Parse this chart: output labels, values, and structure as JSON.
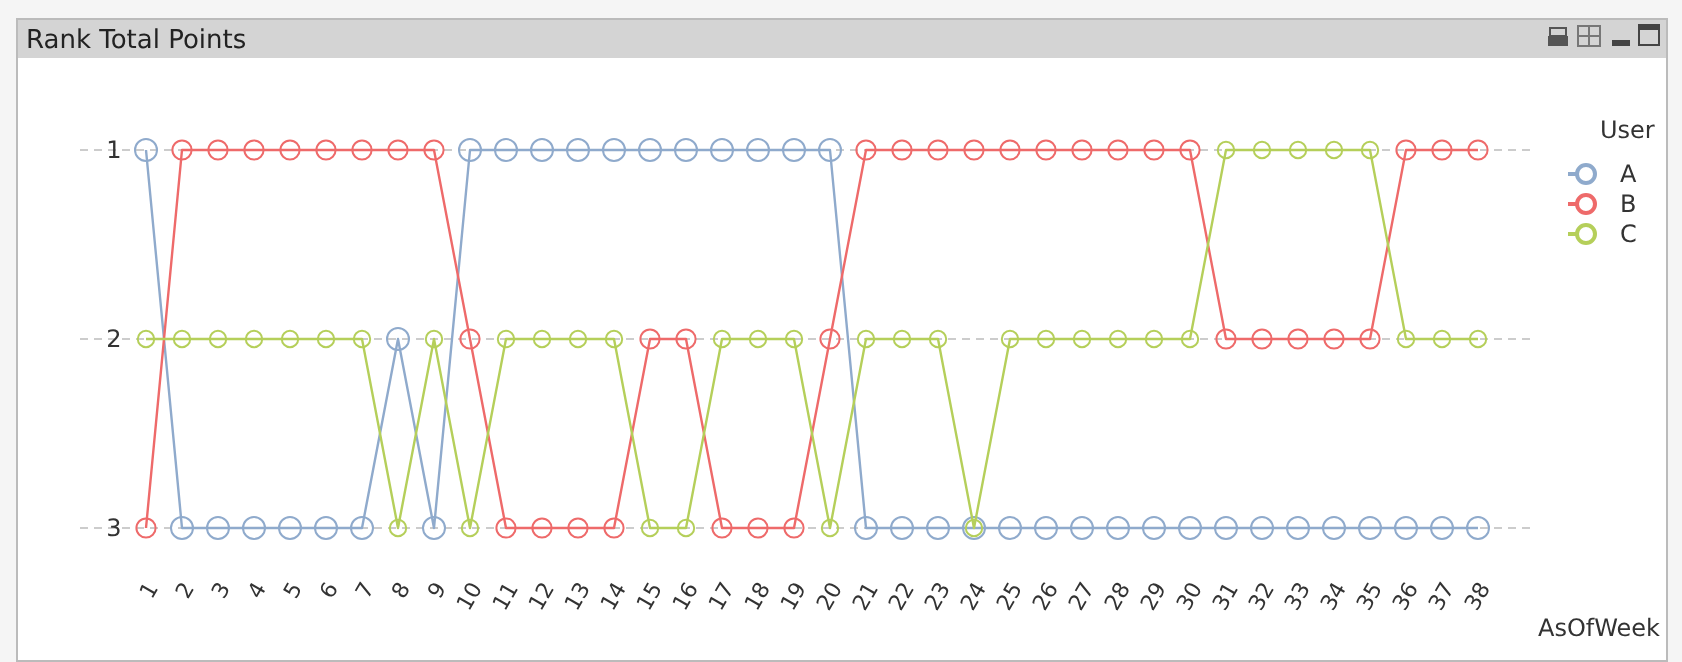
{
  "chart_data": {
    "type": "line",
    "title": "Rank Total Points",
    "xlabel": "AsOfWeek",
    "legend_title": "User",
    "legend": "right",
    "marker": "circle",
    "line_style": "solid",
    "grid": "y",
    "categories": [
      "1",
      "2",
      "3",
      "4",
      "5",
      "6",
      "7",
      "8",
      "9",
      "10",
      "11",
      "12",
      "13",
      "14",
      "15",
      "16",
      "17",
      "18",
      "19",
      "20",
      "21",
      "22",
      "23",
      "24",
      "25",
      "26",
      "27",
      "28",
      "29",
      "30",
      "31",
      "32",
      "33",
      "34",
      "35",
      "36",
      "37",
      "38"
    ],
    "ylim": [
      3,
      1
    ],
    "yticks": [
      1,
      2,
      3
    ],
    "series": [
      {
        "name": "A",
        "color": "#8faacc",
        "values": [
          1,
          3,
          3,
          3,
          3,
          3,
          3,
          2,
          3,
          1,
          1,
          1,
          1,
          1,
          1,
          1,
          1,
          1,
          1,
          1,
          3,
          3,
          3,
          3,
          3,
          3,
          3,
          3,
          3,
          3,
          3,
          3,
          3,
          3,
          3,
          3,
          3,
          3
        ]
      },
      {
        "name": "B",
        "color": "#ee6a6a",
        "values": [
          3,
          1,
          1,
          1,
          1,
          1,
          1,
          1,
          1,
          2,
          3,
          3,
          3,
          3,
          2,
          2,
          3,
          3,
          3,
          2,
          1,
          1,
          1,
          1,
          1,
          1,
          1,
          1,
          1,
          1,
          2,
          2,
          2,
          2,
          2,
          1,
          1,
          1
        ]
      },
      {
        "name": "C",
        "color": "#b5cf5a",
        "values": [
          2,
          2,
          2,
          2,
          2,
          2,
          2,
          3,
          2,
          3,
          2,
          2,
          2,
          2,
          3,
          3,
          2,
          2,
          2,
          3,
          2,
          2,
          2,
          3,
          2,
          2,
          2,
          2,
          2,
          2,
          1,
          1,
          1,
          1,
          1,
          2,
          2,
          2
        ]
      }
    ]
  }
}
